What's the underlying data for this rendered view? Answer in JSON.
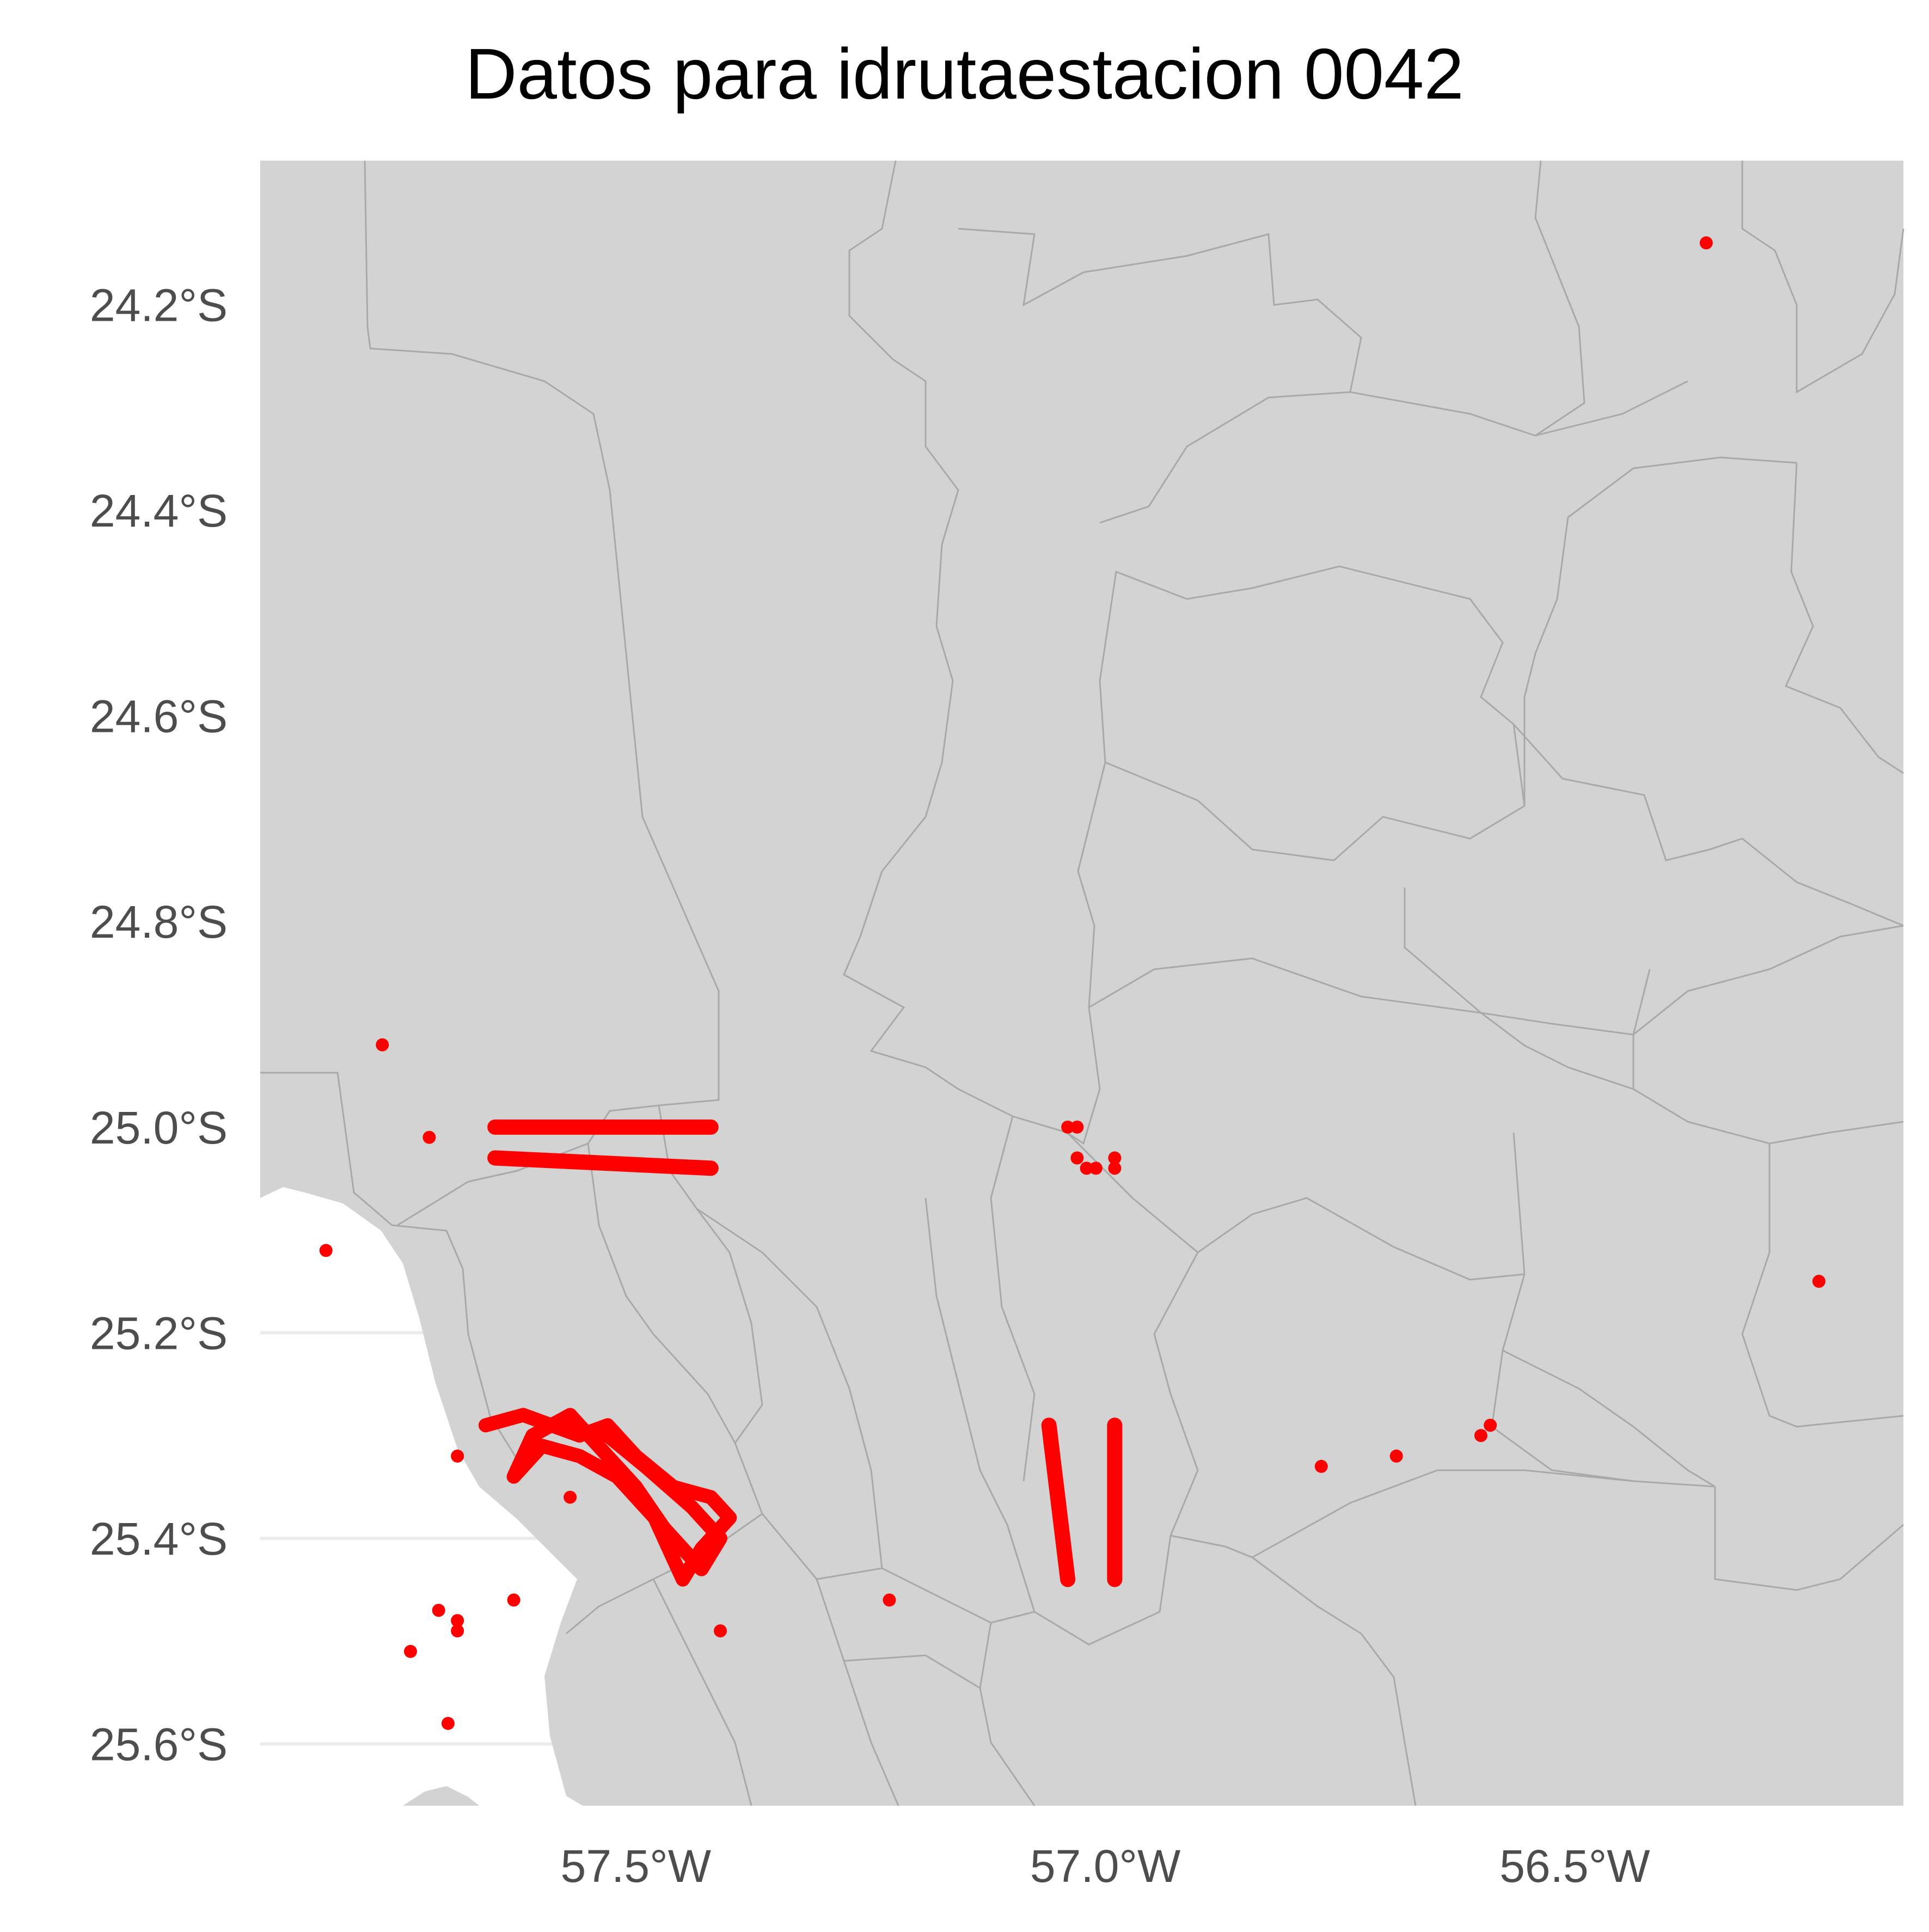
{
  "map": {
    "title": "Datos para idrutaestacion 0042",
    "x_axis": {
      "ticks": [
        -57.5,
        -57.0,
        -56.5
      ],
      "tick_labels": [
        "57.5°W",
        "57.0°W",
        "56.5°W"
      ]
    },
    "y_axis": {
      "ticks": [
        -24.2,
        -24.4,
        -24.6,
        -24.8,
        -25.0,
        -25.2,
        -25.4,
        -25.6
      ],
      "tick_labels": [
        "24.2°S",
        "24.4°S",
        "24.6°S",
        "24.8°S",
        "25.0°S",
        "25.2°S",
        "25.4°S",
        "25.6°S"
      ]
    },
    "lon_range": [
      -57.9,
      -56.15
    ],
    "lat_range": [
      -25.66,
      -24.06
    ],
    "colors": {
      "land": "#d3d3d3",
      "border": "#a9a9a9",
      "points": "#ff0000",
      "background": "#ffffff",
      "gridline": "#ebebeb",
      "axis_text": "#4d4d4d"
    },
    "scattered_points": [
      [
        -56.36,
        -24.14
      ],
      [
        -57.77,
        -24.92
      ],
      [
        -57.72,
        -25.01
      ],
      [
        -57.83,
        -25.12
      ],
      [
        -56.24,
        -25.15
      ],
      [
        -57.69,
        -25.32
      ],
      [
        -57.57,
        -25.36
      ],
      [
        -57.63,
        -25.46
      ],
      [
        -57.71,
        -25.47
      ],
      [
        -57.69,
        -25.48
      ],
      [
        -57.69,
        -25.49
      ],
      [
        -57.74,
        -25.51
      ],
      [
        -57.7,
        -25.58
      ],
      [
        -57.41,
        -25.49
      ],
      [
        -57.23,
        -25.46
      ],
      [
        -56.77,
        -25.33
      ],
      [
        -56.69,
        -25.32
      ],
      [
        -56.6,
        -25.3
      ],
      [
        -56.59,
        -25.29
      ],
      [
        -57.58,
        -25.29
      ],
      [
        -57.04,
        -25.0
      ],
      [
        -57.03,
        -25.0
      ],
      [
        -57.03,
        -25.03
      ],
      [
        -57.02,
        -25.04
      ],
      [
        -57.01,
        -25.04
      ],
      [
        -56.99,
        -25.03
      ],
      [
        -56.99,
        -25.04
      ]
    ],
    "tracks": [
      {
        "lon_from": -57.65,
        "lon_to": -57.42,
        "lat_from": -25.0,
        "lat_to": -25.0
      },
      {
        "lon_from": -57.65,
        "lon_to": -57.42,
        "lat_from": -25.03,
        "lat_to": -25.04
      },
      {
        "lon_from": -57.06,
        "lon_to": -57.04,
        "lat_from": -25.29,
        "lat_to": -25.44
      },
      {
        "lon_from": -56.99,
        "lon_to": -56.99,
        "lat_from": -25.29,
        "lat_to": -25.44
      }
    ],
    "cluster_path": [
      [
        -57.66,
        -25.29
      ],
      [
        -57.62,
        -25.28
      ],
      [
        -57.56,
        -25.3
      ],
      [
        -57.53,
        -25.29
      ],
      [
        -57.5,
        -25.32
      ],
      [
        -57.46,
        -25.35
      ],
      [
        -57.42,
        -25.36
      ],
      [
        -57.4,
        -25.38
      ],
      [
        -57.43,
        -25.41
      ],
      [
        -57.45,
        -25.44
      ],
      [
        -57.46,
        -25.42
      ],
      [
        -57.48,
        -25.38
      ],
      [
        -57.52,
        -25.34
      ],
      [
        -57.56,
        -25.32
      ],
      [
        -57.6,
        -25.31
      ],
      [
        -57.63,
        -25.34
      ],
      [
        -57.61,
        -25.3
      ],
      [
        -57.57,
        -25.28
      ],
      [
        -57.54,
        -25.31
      ],
      [
        -57.5,
        -25.35
      ],
      [
        -57.47,
        -25.39
      ],
      [
        -57.43,
        -25.43
      ],
      [
        -57.41,
        -25.4
      ],
      [
        -57.44,
        -25.37
      ],
      [
        -57.49,
        -25.33
      ],
      [
        -57.53,
        -25.3
      ],
      [
        -57.59,
        -25.29
      ]
    ]
  }
}
